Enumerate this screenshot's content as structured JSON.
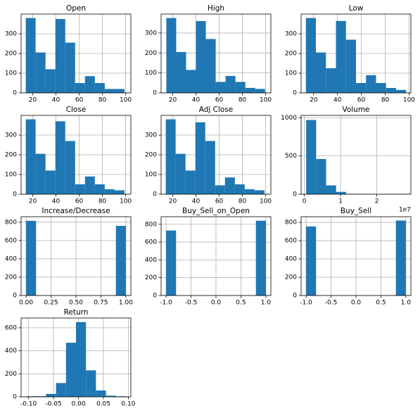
{
  "chart_data": [
    {
      "type": "histogram",
      "title": "Open",
      "bins": [
        14,
        22.5,
        31,
        39.5,
        48,
        56.5,
        65,
        73.5,
        82,
        90.5,
        99
      ],
      "values": [
        380,
        205,
        120,
        375,
        255,
        50,
        85,
        50,
        20,
        20
      ],
      "color": "#1f77b4",
      "xlim": [
        10,
        104.5
      ],
      "ylim": [
        0,
        400
      ],
      "xticks": [
        20,
        40,
        60,
        80,
        100
      ],
      "yticks": [
        0,
        100,
        200,
        300
      ],
      "grid": true
    },
    {
      "type": "histogram",
      "title": "High",
      "bins": [
        14.5,
        23,
        31.5,
        40,
        48.5,
        57,
        65.5,
        74,
        82.5,
        91,
        99.5
      ],
      "values": [
        375,
        205,
        115,
        360,
        270,
        55,
        85,
        55,
        25,
        20
      ],
      "color": "#1f77b4",
      "xlim": [
        10,
        104.5
      ],
      "ylim": [
        0,
        395
      ],
      "xticks": [
        20,
        40,
        60,
        80,
        100
      ],
      "yticks": [
        0,
        100,
        200,
        300
      ],
      "grid": true
    },
    {
      "type": "histogram",
      "title": "Low",
      "bins": [
        13.5,
        21.9,
        30.3,
        38.7,
        47.1,
        55.5,
        63.9,
        72.3,
        80.7,
        89.1,
        97.5
      ],
      "values": [
        380,
        205,
        125,
        365,
        270,
        50,
        90,
        50,
        25,
        15
      ],
      "color": "#1f77b4",
      "xlim": [
        9.5,
        101.5
      ],
      "ylim": [
        0,
        400
      ],
      "xticks": [
        20,
        40,
        60,
        80,
        100
      ],
      "yticks": [
        0,
        100,
        200,
        300
      ],
      "grid": true
    },
    {
      "type": "histogram",
      "title": "Close",
      "bins": [
        14,
        22.5,
        31,
        39.5,
        48,
        56.5,
        65,
        73.5,
        82,
        90.5,
        99
      ],
      "values": [
        380,
        205,
        120,
        370,
        270,
        50,
        90,
        50,
        25,
        20
      ],
      "color": "#1f77b4",
      "xlim": [
        10,
        104.5
      ],
      "ylim": [
        0,
        400
      ],
      "xticks": [
        20,
        40,
        60,
        80,
        100
      ],
      "yticks": [
        0,
        100,
        200,
        300
      ],
      "grid": true
    },
    {
      "type": "histogram",
      "title": "Adj Close",
      "bins": [
        14,
        22.5,
        31,
        39.5,
        48,
        56.5,
        65,
        73.5,
        82,
        90.5,
        99
      ],
      "values": [
        380,
        205,
        120,
        365,
        270,
        45,
        85,
        50,
        25,
        20
      ],
      "color": "#1f77b4",
      "xlim": [
        10,
        104.5
      ],
      "ylim": [
        0,
        400
      ],
      "xticks": [
        20,
        40,
        60,
        80,
        100
      ],
      "yticks": [
        0,
        100,
        200,
        300
      ],
      "grid": true
    },
    {
      "type": "histogram",
      "title": "Volume",
      "bins": [
        500000,
        3250000,
        6000000,
        8750000,
        11500000,
        14250000,
        17000000,
        19750000,
        22500000,
        25250000,
        28000000
      ],
      "values": [
        970,
        460,
        115,
        30,
        5,
        2,
        0,
        0,
        0,
        2
      ],
      "color": "#1f77b4",
      "xlim": [
        -900000,
        29400000
      ],
      "ylim": [
        0,
        1030
      ],
      "xticks": [
        {
          "value": 0,
          "label": "0"
        },
        {
          "value": 10000000,
          "label": "1"
        },
        {
          "value": 20000000,
          "label": "2"
        }
      ],
      "yticks": [
        0,
        500,
        1000
      ],
      "x_offset_label": "1e7",
      "grid": true
    },
    {
      "type": "histogram",
      "title": "Increase/Decrease",
      "bins": [
        0,
        0.1,
        0.2,
        0.3,
        0.4,
        0.5,
        0.6,
        0.7,
        0.8,
        0.9,
        1
      ],
      "values": [
        815,
        0,
        0,
        0,
        0,
        0,
        0,
        0,
        0,
        760
      ],
      "color": "#1f77b4",
      "xlim": [
        -0.05,
        1.05
      ],
      "ylim": [
        0,
        860
      ],
      "xticks": [
        {
          "value": 0,
          "label": "0.00"
        },
        {
          "value": 0.25,
          "label": "0.25"
        },
        {
          "value": 0.5,
          "label": "0.50"
        },
        {
          "value": 0.75,
          "label": "0.75"
        },
        {
          "value": 1,
          "label": "1.00"
        }
      ],
      "yticks": [
        0,
        200,
        400,
        600,
        800
      ],
      "grid": true
    },
    {
      "type": "histogram",
      "title": "Buy_Sell_on_Open",
      "bins": [
        -1,
        -0.8,
        -0.6,
        -0.4,
        -0.2,
        0,
        0.2,
        0.4,
        0.6,
        0.8,
        1
      ],
      "values": [
        730,
        0,
        0,
        0,
        0,
        0,
        0,
        0,
        0,
        840
      ],
      "color": "#1f77b4",
      "xlim": [
        -1.1,
        1.1
      ],
      "ylim": [
        0,
        885
      ],
      "xticks": [
        {
          "value": -1,
          "label": "-1.0"
        },
        {
          "value": -0.5,
          "label": "-0.5"
        },
        {
          "value": 0,
          "label": "0.0"
        },
        {
          "value": 0.5,
          "label": "0.5"
        },
        {
          "value": 1,
          "label": "1.0"
        }
      ],
      "yticks": [
        0,
        200,
        400,
        600,
        800
      ],
      "grid": true
    },
    {
      "type": "histogram",
      "title": "Buy_Sell",
      "bins": [
        -1,
        -0.8,
        -0.6,
        -0.4,
        -0.2,
        0,
        0.2,
        0.4,
        0.6,
        0.8,
        1
      ],
      "values": [
        755,
        0,
        0,
        0,
        0,
        0,
        0,
        0,
        0,
        820
      ],
      "color": "#1f77b4",
      "xlim": [
        -1.1,
        1.1
      ],
      "ylim": [
        0,
        862
      ],
      "xticks": [
        {
          "value": -1,
          "label": "-1.0"
        },
        {
          "value": -0.5,
          "label": "-0.5"
        },
        {
          "value": 0,
          "label": "0.0"
        },
        {
          "value": 0.5,
          "label": "0.5"
        },
        {
          "value": 1,
          "label": "1.0"
        }
      ],
      "yticks": [
        0,
        200,
        400,
        600,
        800
      ],
      "grid": true
    },
    {
      "type": "histogram",
      "title": "Return",
      "bins": [
        -0.105,
        -0.085,
        -0.065,
        -0.045,
        -0.025,
        -0.005,
        0.015,
        0.035,
        0.055,
        0.075,
        0.095
      ],
      "values": [
        5,
        5,
        25,
        120,
        470,
        650,
        230,
        55,
        10,
        5
      ],
      "color": "#1f77b4",
      "xlim": [
        -0.115,
        0.105
      ],
      "ylim": [
        0,
        685
      ],
      "xticks": [
        {
          "value": -0.1,
          "label": "-0.10"
        },
        {
          "value": -0.05,
          "label": "-0.05"
        },
        {
          "value": 0,
          "label": "0.00"
        },
        {
          "value": 0.05,
          "label": "0.05"
        },
        {
          "value": 0.1,
          "label": "0.10"
        }
      ],
      "yticks": [
        0,
        200,
        400,
        600
      ],
      "grid": true
    }
  ]
}
